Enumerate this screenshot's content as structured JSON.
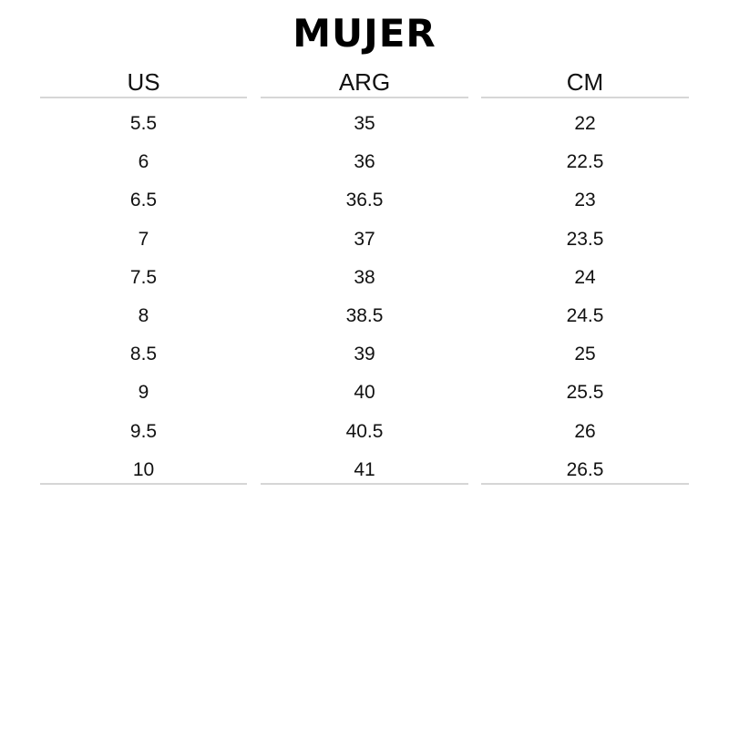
{
  "title": "MUJER",
  "table": {
    "columns": [
      {
        "header": "US",
        "values": [
          "5.5",
          "6",
          "6.5",
          "7",
          "7.5",
          "8",
          "8.5",
          "9",
          "9.5",
          "10"
        ]
      },
      {
        "header": "ARG",
        "values": [
          "35",
          "36",
          "36.5",
          "37",
          "38",
          "38.5",
          "39",
          "40",
          "40.5",
          "41"
        ]
      },
      {
        "header": "CM",
        "values": [
          "22",
          "22.5",
          "23",
          "23.5",
          "24",
          "24.5",
          "25",
          "25.5",
          "26",
          "26.5"
        ]
      }
    ]
  }
}
